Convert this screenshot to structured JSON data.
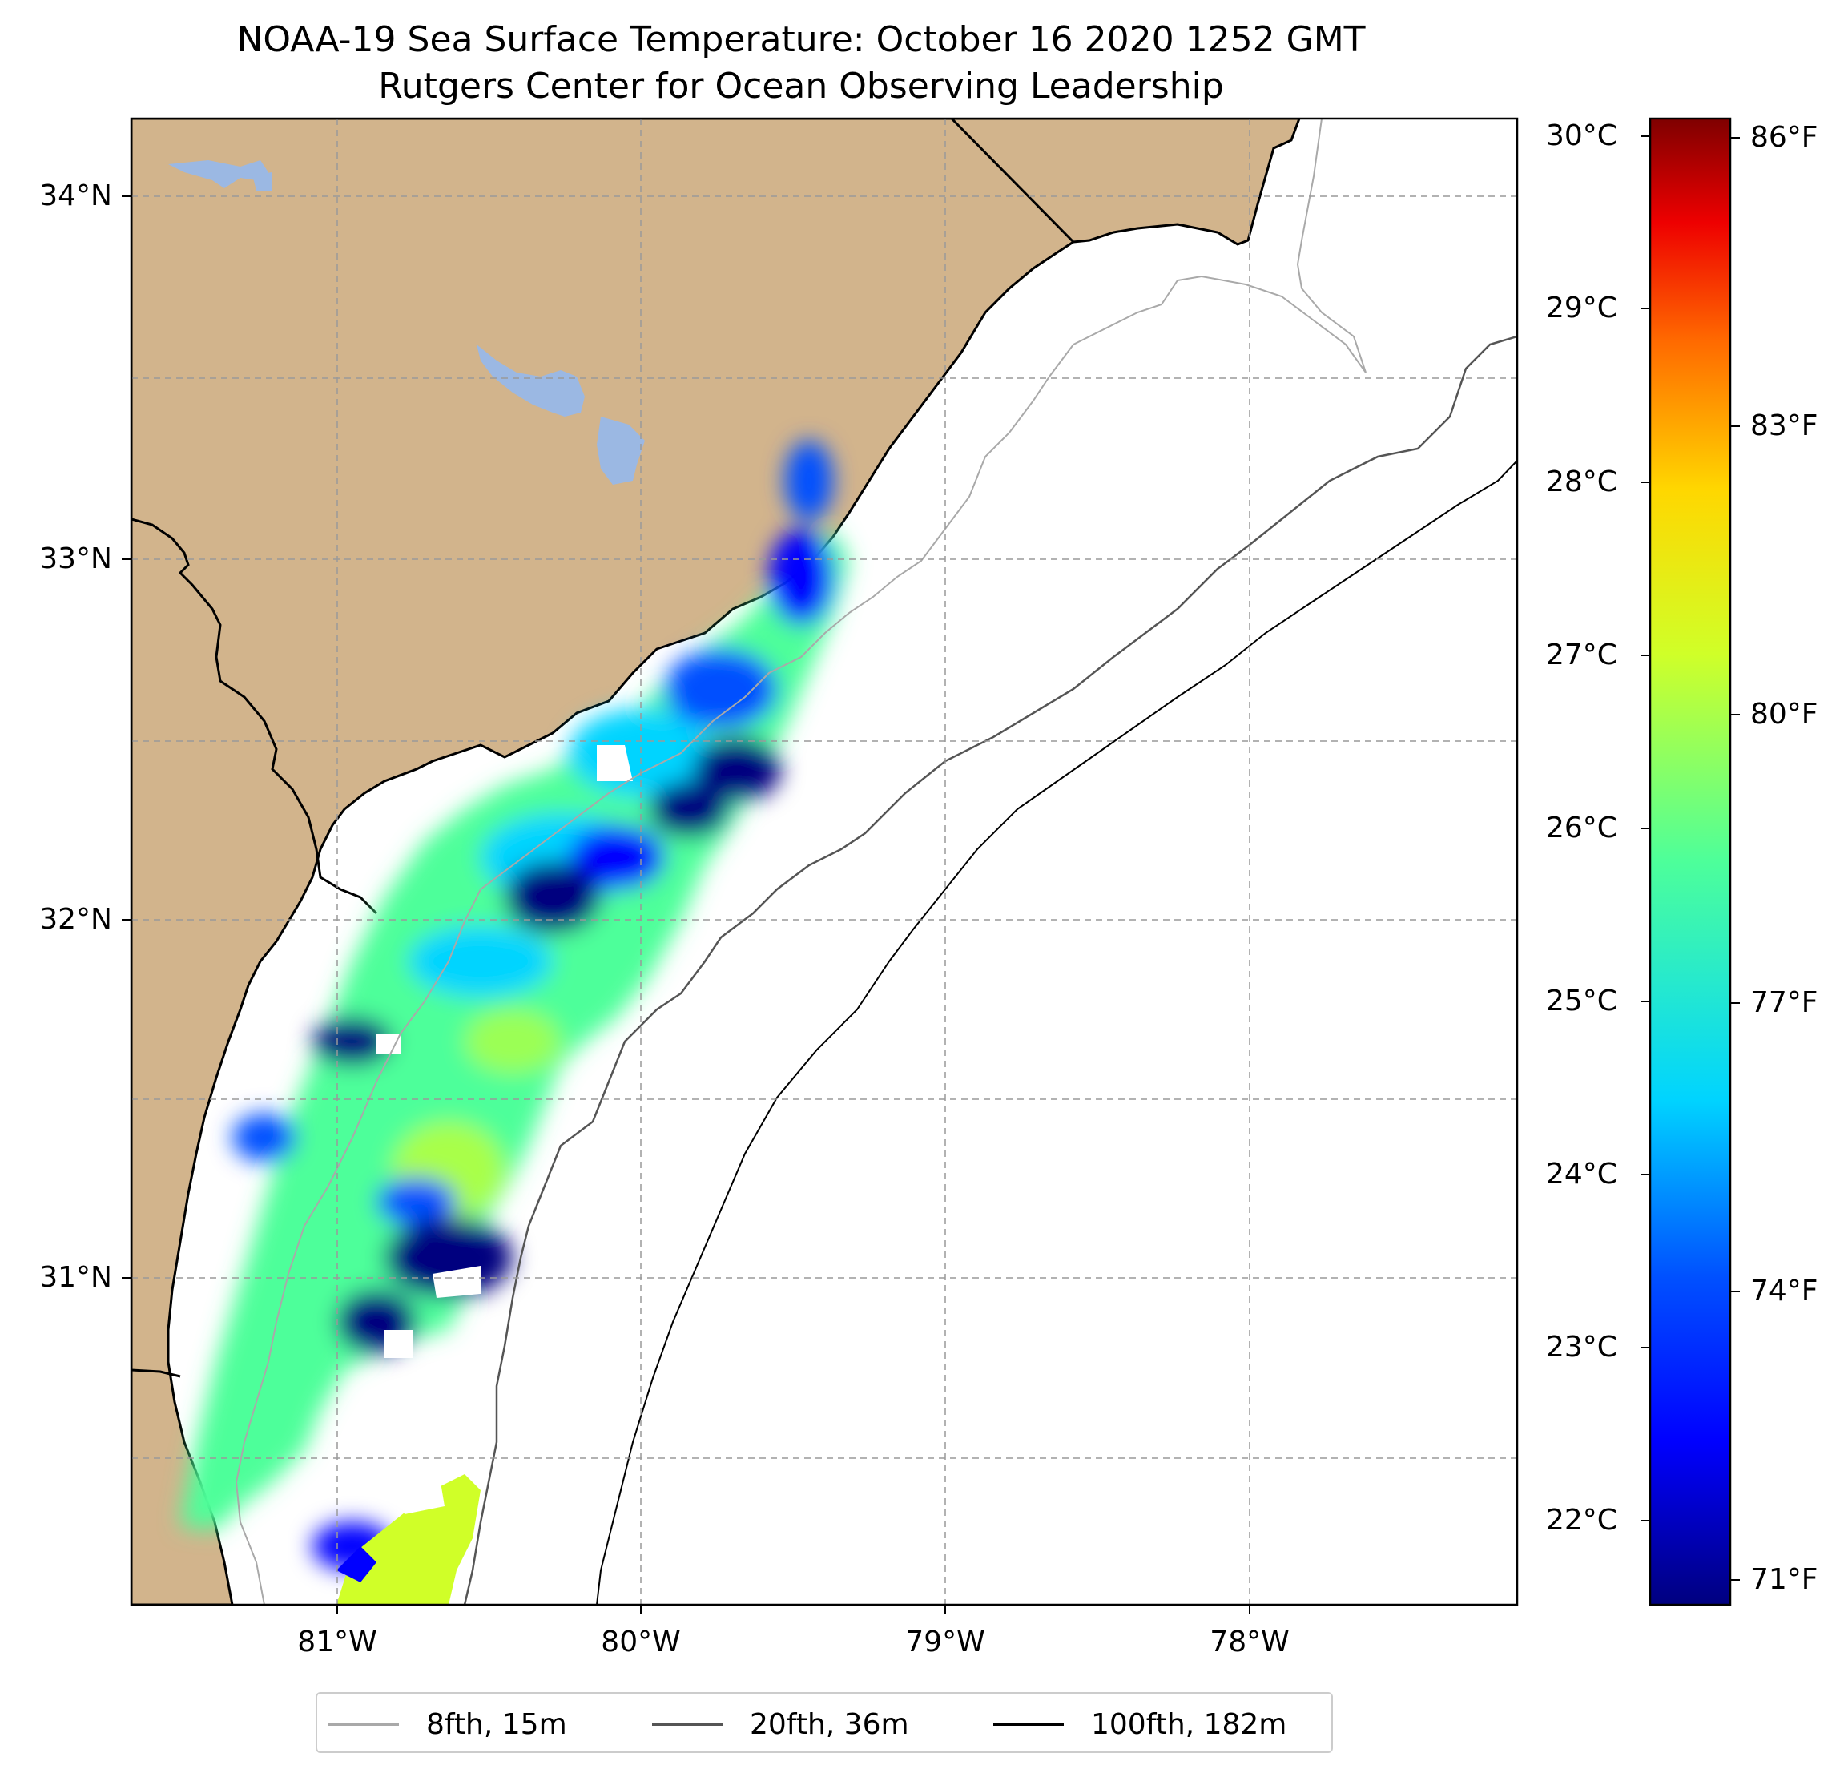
{
  "title": {
    "line1": "NOAA-19 Sea Surface Temperature: October 16 2020 1252 GMT",
    "line2": "Rutgers Center for Ocean Observing Leadership"
  },
  "map": {
    "lat_labels": [
      "34°N",
      "33°N",
      "32°N",
      "31°N"
    ],
    "lon_labels": [
      "81°W",
      "80°W",
      "79°W",
      "78°W"
    ],
    "land_color": "#d2b48c",
    "water_color": "#9bb8e3",
    "grid": true
  },
  "colorbar": {
    "celsius_labels": [
      "30°C",
      "29°C",
      "28°C",
      "27°C",
      "26°C",
      "25°C",
      "24°C",
      "23°C",
      "22°C"
    ],
    "fahrenheit_labels": [
      "86°F",
      "83°F",
      "80°F",
      "77°F",
      "74°F",
      "71°F"
    ],
    "colormap": "jet",
    "range_c": [
      21.6,
      30.1
    ]
  },
  "legend": {
    "items": [
      {
        "label": "8fth, 15m",
        "color": "#a9a9a9"
      },
      {
        "label": "20fth, 36m",
        "color": "#555555"
      },
      {
        "label": "100fth, 182m",
        "color": "#000000"
      }
    ]
  }
}
